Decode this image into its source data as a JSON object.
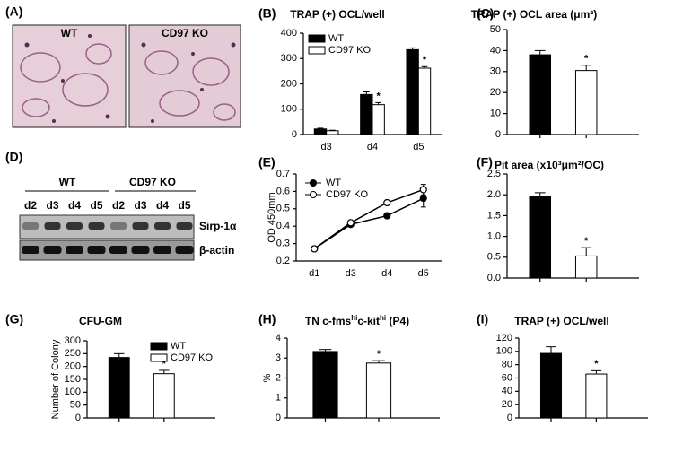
{
  "panel_A": {
    "label": "(A)",
    "images": [
      "WT",
      "CD97 KO"
    ]
  },
  "panel_D": {
    "label": "(D)",
    "groups": [
      "WT",
      "CD97 KO"
    ],
    "lanes": [
      "d2",
      "d3",
      "d4",
      "d5",
      "d2",
      "d3",
      "d4",
      "d5"
    ],
    "rows": [
      "Sirp-1α",
      "β-actin"
    ]
  },
  "chart_data": [
    {
      "type": "bar",
      "panel": "(B)",
      "title": "TRAP (+) OCL/well",
      "categories": [
        "d3",
        "d4",
        "d5"
      ],
      "series": [
        {
          "name": "WT",
          "color": "#000000",
          "values": [
            22,
            158,
            335
          ],
          "errors": [
            3,
            10,
            7
          ]
        },
        {
          "name": "CD97 KO",
          "color": "#ffffff",
          "values": [
            15,
            118,
            262
          ],
          "errors": [
            2,
            8,
            6
          ],
          "markers": [
            null,
            "*",
            "*"
          ]
        }
      ],
      "ylim": [
        0,
        400
      ],
      "yticks": [
        0,
        100,
        200,
        300,
        400
      ],
      "legend": "upper left"
    },
    {
      "type": "bar",
      "panel": "(C)",
      "title": "TRAP (+) OCL area (μm²)",
      "series": [
        {
          "color": "#000000",
          "values": [
            38
          ],
          "errors": [
            2
          ]
        },
        {
          "color": "#ffffff",
          "values": [
            30.5
          ],
          "errors": [
            2.5
          ],
          "markers": [
            "*"
          ]
        }
      ],
      "ylim": [
        0,
        50
      ],
      "yticks": [
        0,
        10,
        20,
        30,
        40,
        50
      ]
    },
    {
      "type": "line",
      "panel": "(E)",
      "ylabel": "OD 450mm",
      "categories": [
        "d1",
        "d3",
        "d4",
        "d5"
      ],
      "series": [
        {
          "name": "WT",
          "color": "#000000",
          "values": [
            0.27,
            0.41,
            0.46,
            0.56
          ],
          "errors": [
            0.005,
            0.01,
            0.008,
            0.05
          ]
        },
        {
          "name": "CD97 KO",
          "color": "#ffffff",
          "values": [
            0.27,
            0.42,
            0.535,
            0.61
          ],
          "errors": [
            0.005,
            0.01,
            0.01,
            0.03
          ]
        }
      ],
      "ylim": [
        0.2,
        0.7
      ],
      "yticks": [
        0.2,
        0.3,
        0.4,
        0.5,
        0.6,
        0.7
      ],
      "legend": "upper left"
    },
    {
      "type": "bar",
      "panel": "(F)",
      "title": "Pit area (x10³μm²/OC)",
      "series": [
        {
          "color": "#000000",
          "values": [
            1.95
          ],
          "errors": [
            0.1
          ]
        },
        {
          "color": "#ffffff",
          "values": [
            0.53
          ],
          "errors": [
            0.2
          ],
          "markers": [
            "*"
          ]
        }
      ],
      "ylim": [
        0,
        2.5
      ],
      "yticks": [
        {
          "value": 0,
          "label": "0.0"
        },
        0.5,
        {
          "value": 1,
          "label": "1.0"
        },
        1.5,
        {
          "value": 2,
          "label": "2.0"
        },
        2.5
      ]
    },
    {
      "type": "bar",
      "panel": "(G)",
      "title": "CFU-GM",
      "ylabel": "Number of Colony",
      "series": [
        {
          "name": "WT",
          "color": "#000000",
          "values": [
            235
          ],
          "errors": [
            15
          ]
        },
        {
          "name": "CD97 KO",
          "color": "#ffffff",
          "values": [
            172
          ],
          "errors": [
            13
          ],
          "markers": [
            "*"
          ]
        }
      ],
      "ylim": [
        0,
        300
      ],
      "yticks": [
        0,
        50,
        100,
        150,
        200,
        250,
        300
      ],
      "legend": "upper right"
    },
    {
      "type": "bar",
      "panel": "(H)",
      "title": [
        {
          "text": "TN c-fms"
        },
        {
          "text": "hi",
          "sup": true
        },
        {
          "text": "c-kit"
        },
        {
          "text": "hi",
          "sup": true
        },
        {
          "text": " (P4)"
        }
      ],
      "ylabel": "%",
      "series": [
        {
          "color": "#000000",
          "values": [
            3.33
          ],
          "errors": [
            0.1
          ]
        },
        {
          "color": "#ffffff",
          "values": [
            2.75
          ],
          "errors": [
            0.12
          ],
          "markers": [
            "*"
          ]
        }
      ],
      "ylim": [
        0,
        4
      ],
      "yticks": [
        0,
        1,
        2,
        3,
        4
      ]
    },
    {
      "type": "bar",
      "panel": "(I)",
      "title": "TRAP (+) OCL/well",
      "series": [
        {
          "color": "#000000",
          "values": [
            97
          ],
          "errors": [
            10
          ]
        },
        {
          "color": "#ffffff",
          "values": [
            66
          ],
          "errors": [
            5
          ],
          "markers": [
            "*"
          ]
        }
      ],
      "ylim": [
        0,
        120
      ],
      "yticks": [
        0,
        20,
        40,
        60,
        80,
        100,
        120
      ]
    }
  ]
}
